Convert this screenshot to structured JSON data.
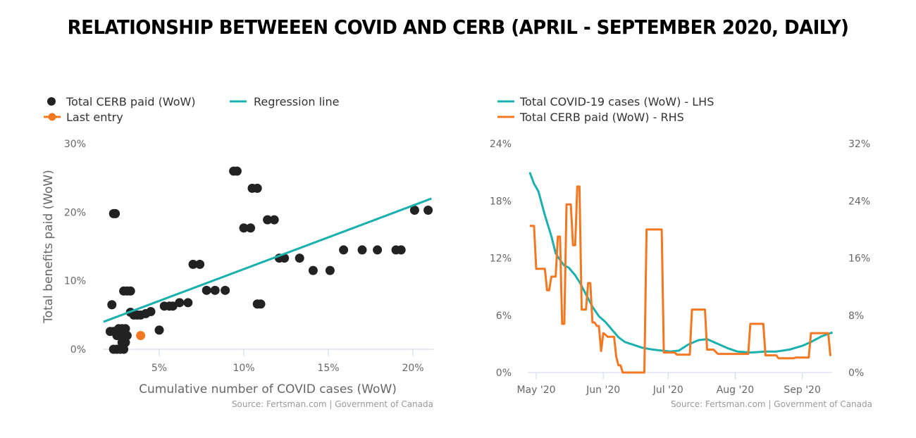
{
  "title": "RELATIONSHIP BETWEEEN COVID AND CERB (APRIL - SEPTEMBER 2020, DAILY)",
  "colors": {
    "teal": "#1ab0ac",
    "orange": "#f47721",
    "dots": "#222222",
    "axis": "#ccd6eb",
    "text": "#666666"
  },
  "chart_data": [
    {
      "type": "scatter",
      "title": "",
      "xlabel": "Cumulative number of COVID cases (WoW)",
      "ylabel": "Total benefits paid (WoW)",
      "xlim": [
        1.7,
        21.2
      ],
      "ylim": [
        0,
        30
      ],
      "x_ticks": [
        5,
        10,
        15,
        20
      ],
      "x_tick_labels": [
        "5%",
        "10%",
        "15%",
        "20%"
      ],
      "y_ticks": [
        0,
        10,
        20,
        30
      ],
      "y_tick_labels": [
        "0%",
        "10%",
        "20%",
        "30%"
      ],
      "legend": [
        {
          "name": "Total CERB paid (WoW)",
          "symbol": "dot"
        },
        {
          "name": "Regression line",
          "symbol": "line"
        },
        {
          "name": "Last entry",
          "symbol": "line-dot"
        }
      ],
      "legend_position": "top-left",
      "source": "Source: Fertsman.com | Government of Canada",
      "series": [
        {
          "name": "Total CERB paid (WoW)",
          "points": [
            [
              2.3,
              0
            ],
            [
              2.5,
              0
            ],
            [
              2.7,
              0
            ],
            [
              2.9,
              0
            ],
            [
              2.1,
              2.6
            ],
            [
              2.3,
              2.6
            ],
            [
              2.5,
              2.0
            ],
            [
              2.7,
              2.0
            ],
            [
              2.9,
              2.0
            ],
            [
              2.6,
              3.0
            ],
            [
              2.8,
              3.0
            ],
            [
              3.0,
              3.0
            ],
            [
              2.8,
              1.0
            ],
            [
              3.0,
              1.0
            ],
            [
              3.1,
              2.0
            ],
            [
              2.2,
              6.5
            ],
            [
              2.3,
              19.8
            ],
            [
              2.4,
              19.8
            ],
            [
              2.9,
              8.5
            ],
            [
              3.1,
              8.5
            ],
            [
              3.3,
              8.5
            ],
            [
              3.3,
              5.4
            ],
            [
              3.5,
              5.0
            ],
            [
              3.7,
              5.0
            ],
            [
              3.9,
              5.0
            ],
            [
              4.2,
              5.2
            ],
            [
              4.5,
              5.5
            ],
            [
              5.0,
              2.8
            ],
            [
              5.3,
              6.3
            ],
            [
              5.6,
              6.3
            ],
            [
              5.8,
              6.3
            ],
            [
              6.2,
              6.8
            ],
            [
              6.7,
              6.8
            ],
            [
              7.0,
              12.4
            ],
            [
              7.4,
              12.4
            ],
            [
              7.8,
              8.6
            ],
            [
              8.3,
              8.6
            ],
            [
              8.9,
              8.6
            ],
            [
              9.4,
              26.0
            ],
            [
              9.6,
              26.0
            ],
            [
              10.0,
              17.7
            ],
            [
              10.4,
              17.7
            ],
            [
              10.5,
              23.5
            ],
            [
              10.8,
              23.5
            ],
            [
              10.8,
              6.6
            ],
            [
              11.0,
              6.6
            ],
            [
              11.4,
              18.9
            ],
            [
              11.8,
              18.9
            ],
            [
              12.1,
              13.3
            ],
            [
              12.4,
              13.3
            ],
            [
              13.3,
              13.3
            ],
            [
              14.1,
              11.5
            ],
            [
              15.1,
              11.5
            ],
            [
              15.9,
              14.5
            ],
            [
              17.0,
              14.5
            ],
            [
              17.9,
              14.5
            ],
            [
              19.0,
              14.5
            ],
            [
              19.3,
              14.5
            ],
            [
              20.1,
              20.3
            ],
            [
              20.9,
              20.3
            ]
          ]
        },
        {
          "name": "Regression line",
          "points": [
            [
              1.7,
              4.0
            ],
            [
              21.1,
              22.0
            ]
          ]
        },
        {
          "name": "Last entry",
          "points": [
            [
              3.9,
              2.0
            ]
          ]
        }
      ]
    },
    {
      "type": "line",
      "title": "",
      "xlabel": "",
      "x_ticks": [
        "May '20",
        "Jun '20",
        "Jul '20",
        "Aug '20",
        "Sep '20"
      ],
      "x_tick_days": [
        0,
        31,
        61,
        92,
        123
      ],
      "x_unit": "days since 2020-05-01",
      "xlim": [
        -4,
        137
      ],
      "y_left": {
        "ylim": [
          0,
          24
        ],
        "ticks": [
          0,
          6,
          12,
          18,
          24
        ],
        "tick_labels": [
          "0%",
          "6%",
          "12%",
          "18%",
          "24%"
        ]
      },
      "y_right": {
        "ylim": [
          0,
          32
        ],
        "ticks": [
          0,
          8,
          16,
          24,
          32
        ],
        "tick_labels": [
          "0%",
          "8%",
          "16%",
          "24%",
          "32%"
        ]
      },
      "legend": [
        {
          "name": "Total COVID-19 cases (WoW) - LHS",
          "symbol": "line"
        },
        {
          "name": "Total CERB paid (WoW) - RHS",
          "symbol": "line"
        }
      ],
      "legend_position": "top-left",
      "source": "Source: Fertsman.com | Government of Canada",
      "series": [
        {
          "name": "Total COVID-19 cases (WoW) - LHS",
          "axis": "left",
          "points": [
            [
              -3,
              21.0
            ],
            [
              -1,
              19.8
            ],
            [
              0,
              19.4
            ],
            [
              1,
              19.0
            ],
            [
              4,
              16.5
            ],
            [
              7,
              14.3
            ],
            [
              9,
              12.5
            ],
            [
              11,
              11.8
            ],
            [
              13,
              11.2
            ],
            [
              15,
              11.0
            ],
            [
              18,
              10.2
            ],
            [
              20,
              9.5
            ],
            [
              23,
              8.2
            ],
            [
              26,
              6.9
            ],
            [
              29,
              5.9
            ],
            [
              32,
              5.3
            ],
            [
              35,
              4.5
            ],
            [
              38,
              3.7
            ],
            [
              41,
              3.2
            ],
            [
              45,
              2.9
            ],
            [
              49,
              2.6
            ],
            [
              54,
              2.4
            ],
            [
              58,
              2.3
            ],
            [
              62,
              2.2
            ],
            [
              66,
              2.3
            ],
            [
              70,
              2.9
            ],
            [
              75,
              3.4
            ],
            [
              79,
              3.5
            ],
            [
              84,
              3.0
            ],
            [
              89,
              2.5
            ],
            [
              93,
              2.2
            ],
            [
              99,
              2.1
            ],
            [
              106,
              2.2
            ],
            [
              111,
              2.2
            ],
            [
              117,
              2.4
            ],
            [
              123,
              2.8
            ],
            [
              127,
              3.2
            ],
            [
              132,
              3.8
            ],
            [
              137,
              4.2
            ]
          ]
        },
        {
          "name": "Total CERB paid (WoW) - RHS",
          "axis": "right",
          "points": [
            [
              -3,
              20.5
            ],
            [
              -1,
              20.5
            ],
            [
              0,
              14.5
            ],
            [
              3,
              14.5
            ],
            [
              4,
              14.5
            ],
            [
              5,
              11.5
            ],
            [
              6,
              11.5
            ],
            [
              7,
              13.4
            ],
            [
              8,
              13.4
            ],
            [
              9,
              13.4
            ],
            [
              10,
              19.0
            ],
            [
              11,
              19.0
            ],
            [
              12,
              6.8
            ],
            [
              13,
              6.8
            ],
            [
              14,
              23.5
            ],
            [
              15,
              23.5
            ],
            [
              16,
              23.5
            ],
            [
              17,
              17.8
            ],
            [
              18,
              17.8
            ],
            [
              19,
              26.0
            ],
            [
              20,
              26.0
            ],
            [
              21,
              8.8
            ],
            [
              22,
              8.8
            ],
            [
              23,
              8.8
            ],
            [
              24,
              12.5
            ],
            [
              25,
              12.5
            ],
            [
              26,
              7.0
            ],
            [
              27,
              7.0
            ],
            [
              28,
              6.5
            ],
            [
              29,
              6.5
            ],
            [
              30,
              3.0
            ],
            [
              31,
              5.5
            ],
            [
              32,
              5.3
            ],
            [
              33,
              5.0
            ],
            [
              34,
              5.0
            ],
            [
              35,
              5.0
            ],
            [
              36,
              5.0
            ],
            [
              37,
              2.2
            ],
            [
              38,
              1.0
            ],
            [
              39,
              1.0
            ],
            [
              40,
              0
            ],
            [
              41,
              0
            ],
            [
              48,
              0
            ],
            [
              50,
              0
            ],
            [
              51,
              20.0
            ],
            [
              52,
              20.0
            ],
            [
              58,
              20.0
            ],
            [
              59,
              2.8
            ],
            [
              62,
              2.8
            ],
            [
              64,
              2.8
            ],
            [
              65,
              2.5
            ],
            [
              71,
              2.5
            ],
            [
              72,
              8.8
            ],
            [
              78,
              8.8
            ],
            [
              79,
              3.2
            ],
            [
              82,
              3.2
            ],
            [
              84,
              2.6
            ],
            [
              94,
              2.6
            ],
            [
              98,
              2.6
            ],
            [
              99,
              6.8
            ],
            [
              105,
              6.8
            ],
            [
              106,
              2.4
            ],
            [
              111,
              2.4
            ],
            [
              112,
              2.0
            ],
            [
              119,
              2.0
            ],
            [
              120,
              2.1
            ],
            [
              126,
              2.1
            ],
            [
              127,
              5.5
            ],
            [
              135,
              5.5
            ],
            [
              136,
              2.3
            ]
          ]
        }
      ]
    }
  ]
}
